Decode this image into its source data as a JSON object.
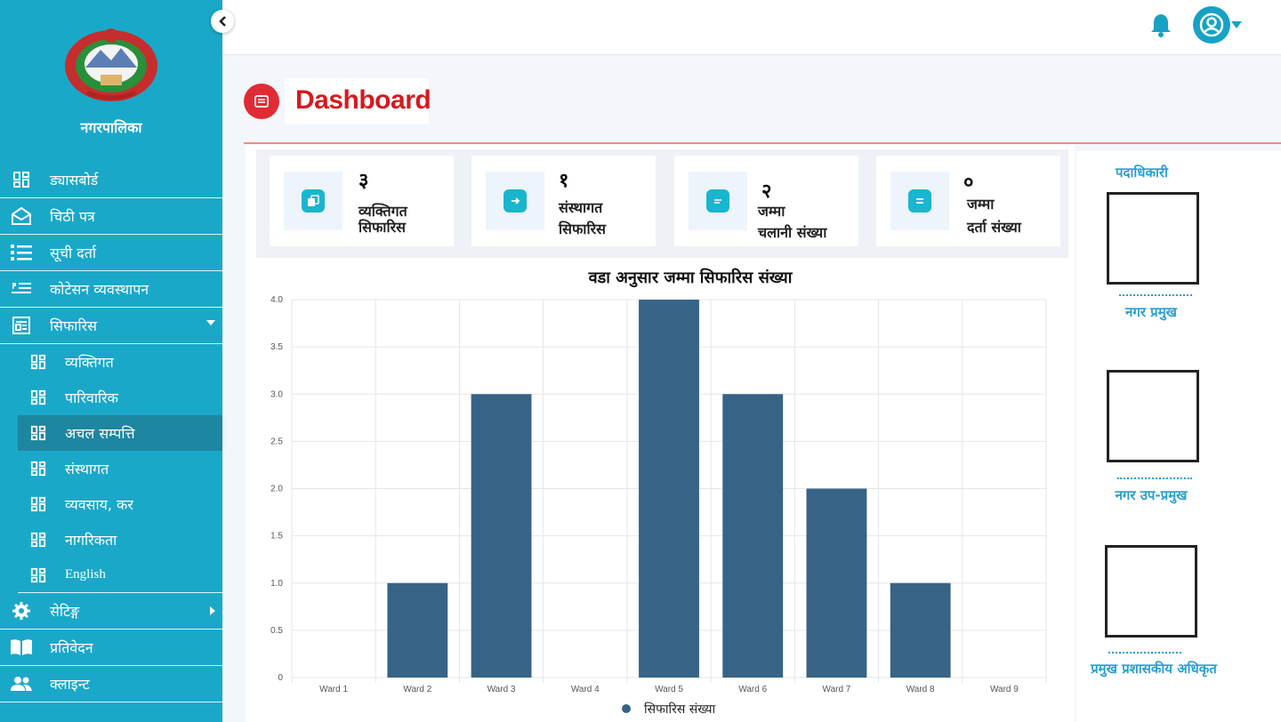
{
  "sidebar": {
    "brand": "नगरपालिका",
    "items": [
      {
        "label": "ड्यासबोर्ड"
      },
      {
        "label": "चिठी पत्र"
      },
      {
        "label": "सूची दर्ता"
      },
      {
        "label": "कोटेसन व्यवस्थापन"
      },
      {
        "label": "सिफारिस"
      },
      {
        "label": "सेटिङ्ग"
      },
      {
        "label": "प्रतिवेदन"
      },
      {
        "label": "क्लाइन्ट"
      }
    ],
    "subitems": [
      {
        "label": "व्यक्तिगत"
      },
      {
        "label": "पारिवारिक"
      },
      {
        "label": "अचल सम्पत्ति"
      },
      {
        "label": "संस्थागत"
      },
      {
        "label": "व्यवसाय, कर"
      },
      {
        "label": "नागरिकता"
      },
      {
        "label": "English"
      }
    ]
  },
  "header": {
    "title": "Dashboard"
  },
  "stats": [
    {
      "value": "३",
      "label1": "व्यक्तिगत",
      "label2": "सिफारिस"
    },
    {
      "value": "१",
      "label1": "संस्थागत",
      "label2": "सिफारिस"
    },
    {
      "value": "२",
      "label1": "जम्मा",
      "label2": "चलानी संख्या"
    },
    {
      "value": "०",
      "label1": "जम्मा",
      "label2": "दर्ता संख्या"
    }
  ],
  "chart_data": {
    "type": "bar",
    "title": "वडा अनुसार जम्मा सिफारिस संख्या",
    "categories": [
      "Ward 1",
      "Ward 2",
      "Ward 3",
      "Ward 4",
      "Ward 5",
      "Ward 6",
      "Ward 7",
      "Ward 8",
      "Ward 9"
    ],
    "series": [
      {
        "name": "सिफारिस संख्या",
        "values": [
          0,
          1,
          3,
          0,
          4,
          3,
          2,
          1,
          0
        ]
      }
    ],
    "yticks": [
      "0",
      "0.5",
      "1.0",
      "1.5",
      "2.0",
      "2.5",
      "3.0",
      "3.5",
      "4.0"
    ],
    "ylim": [
      0,
      4
    ],
    "grid": true,
    "legend": "bottom",
    "bar_color": "#376386"
  },
  "officials": {
    "heading": "पदाधिकारी",
    "list": [
      {
        "title": "नगर प्रमुख"
      },
      {
        "title": "नगर उप-प्रमुख"
      },
      {
        "title": "प्रमुख प्रशासकीय अधिकृत"
      }
    ]
  },
  "colors": {
    "sidebar": "#1aa8c9",
    "accent": "#e02b35",
    "bar": "#376386"
  }
}
